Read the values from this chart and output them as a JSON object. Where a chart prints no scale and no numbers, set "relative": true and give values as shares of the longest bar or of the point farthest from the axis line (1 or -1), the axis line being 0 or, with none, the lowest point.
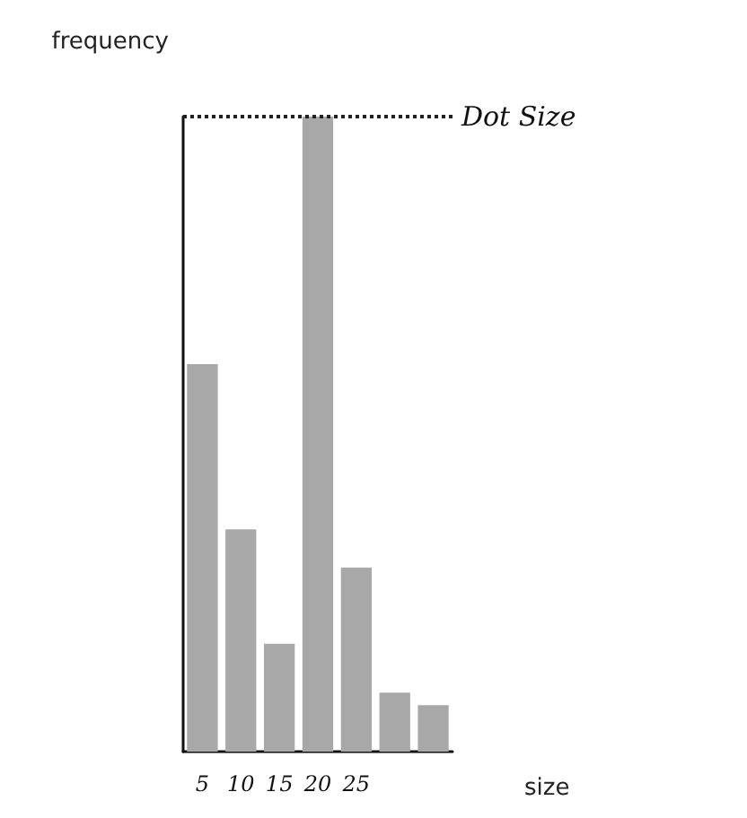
{
  "chart_data": {
    "type": "bar",
    "relative": true,
    "xlabel": "size",
    "ylabel": "frequency",
    "categories": [
      "5",
      "10",
      "15",
      "20",
      "25",
      null,
      null
    ],
    "values": [
      0.61,
      0.35,
      0.17,
      1,
      0.29,
      0.093,
      0.073
    ],
    "color": "#a8a8a8",
    "ref_lines": [
      {
        "axis": "y",
        "value": 1,
        "label": "Dot Size",
        "line_style": "dotted",
        "color": "#222222"
      }
    ],
    "grid": false
  }
}
